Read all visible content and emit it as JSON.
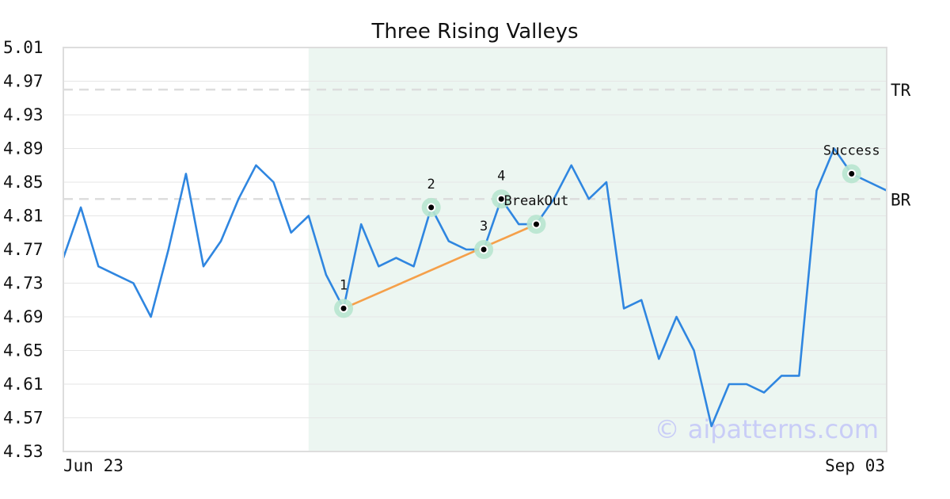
{
  "chart_data": {
    "type": "line",
    "title": "Three Rising Valleys",
    "xlabel": "",
    "ylabel": "",
    "x_tick_labels": [
      "Jun 23",
      "Sep 03"
    ],
    "y_ticks": [
      "5.01",
      "4.97",
      "4.93",
      "4.89",
      "4.85",
      "4.81",
      "4.77",
      "4.73",
      "4.69",
      "4.65",
      "4.61",
      "4.57",
      "4.53"
    ],
    "ylim": [
      4.53,
      5.01
    ],
    "grid": true,
    "colors": {
      "price": "#2f86e0",
      "trend": "#f5a04a",
      "highlight": "#ecf6f1",
      "marker_ring": "#b8e6cf",
      "refline": "#dddddd"
    },
    "series": [
      {
        "values": [
          4.76,
          4.82,
          4.75,
          4.74,
          4.73,
          4.69,
          4.77,
          4.86,
          4.75,
          4.78,
          4.83,
          4.87,
          4.85,
          4.79,
          4.81,
          4.74,
          4.7,
          4.8,
          4.75,
          4.76,
          4.75,
          4.82,
          4.78,
          4.77,
          4.77,
          4.83,
          4.8,
          4.8,
          4.83,
          4.87,
          4.83,
          4.85,
          4.7,
          4.71,
          4.64,
          4.69,
          4.65,
          4.56,
          4.61,
          4.61,
          4.6,
          4.62,
          4.62,
          4.84,
          4.89,
          4.86,
          4.85,
          4.84
        ]
      }
    ],
    "highlight_range": {
      "start_index": 14,
      "end_index": 47
    },
    "reference_lines": [
      {
        "label": "TR",
        "value": 4.96
      },
      {
        "label": "BR",
        "value": 4.83
      }
    ],
    "trend_line": {
      "from_index": 16,
      "from_value": 4.7,
      "to_index": 27,
      "to_value": 4.8
    },
    "points": [
      {
        "label": "1",
        "index": 16,
        "value": 4.7
      },
      {
        "label": "2",
        "index": 21,
        "value": 4.82
      },
      {
        "label": "3",
        "index": 24,
        "value": 4.77
      },
      {
        "label": "4",
        "index": 25,
        "value": 4.83
      },
      {
        "label": "BreakOut",
        "index": 27,
        "value": 4.8
      },
      {
        "label": "Success",
        "index": 45,
        "value": 4.86
      }
    ],
    "watermark": "© aipatterns.com"
  }
}
